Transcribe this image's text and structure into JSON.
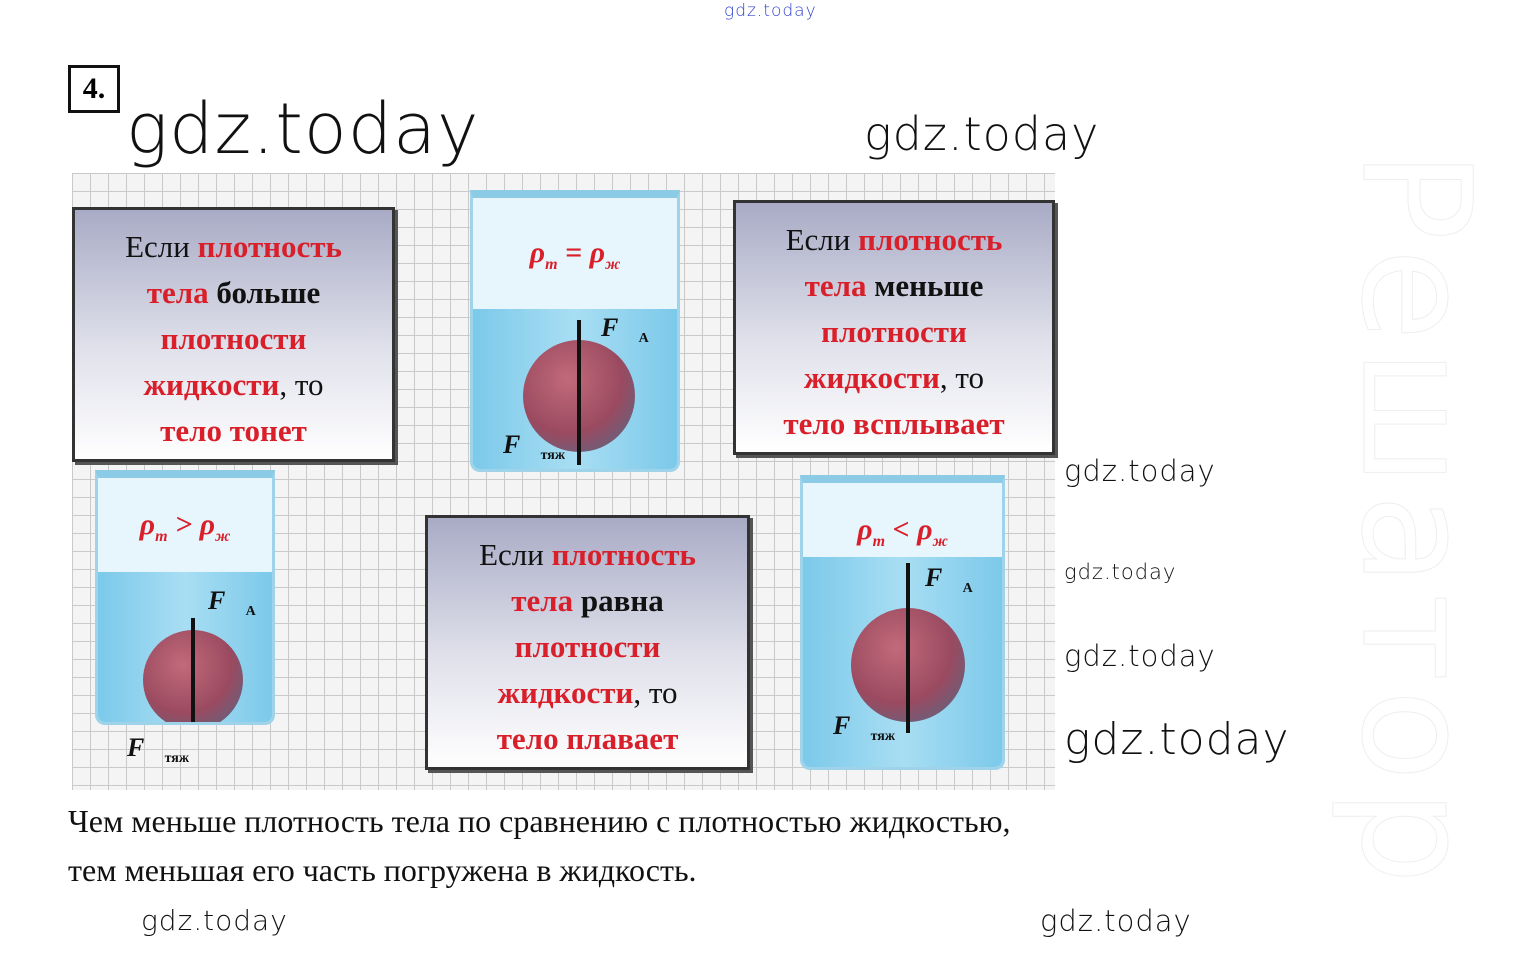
{
  "watermarks": {
    "top": "gdz.today",
    "main": "gdz.today",
    "items": [
      "gdz.today",
      "gdz.today",
      "gdz.today",
      "gdz.today",
      "gdz.today",
      "gdz.today",
      "gdz.today"
    ],
    "overlay": "Решатор"
  },
  "task_number": "4.",
  "figure": {
    "box_sinks": {
      "lines": [
        [
          "Если ",
          "плотность"
        ],
        [
          "тела",
          " больше"
        ],
        [
          "плотности"
        ],
        [
          "жидкости",
          ", то"
        ],
        [
          "тело тонет"
        ]
      ]
    },
    "box_floats": {
      "lines": [
        [
          "Если ",
          "плотность"
        ],
        [
          "тела",
          " равна"
        ],
        [
          "плотности"
        ],
        [
          "жидкости",
          ", то"
        ],
        [
          "тело плавает"
        ]
      ]
    },
    "box_rises": {
      "lines": [
        [
          "Если ",
          "плотность"
        ],
        [
          "тела",
          " меньше"
        ],
        [
          "плотности"
        ],
        [
          "жидкости",
          ", то"
        ],
        [
          "тело всплывает"
        ]
      ]
    },
    "formula_equal": {
      "lhs": "ρ",
      "lhs_sub": "т",
      "op": " = ",
      "rhs": "ρ",
      "rhs_sub": "ж"
    },
    "formula_greater": {
      "lhs": "ρ",
      "lhs_sub": "т",
      "op": " > ",
      "rhs": "ρ",
      "rhs_sub": "ж"
    },
    "formula_less": {
      "lhs": "ρ",
      "lhs_sub": "т",
      "op": " < ",
      "rhs": "ρ",
      "rhs_sub": "ж"
    },
    "force_archimedes": {
      "symbol": "F⃗",
      "sub": "А"
    },
    "force_gravity": {
      "symbol": "F⃗",
      "sub": "тяж"
    },
    "colors": {
      "highlight": "#d81f2a",
      "liquid": "#7cc9ea",
      "ball": "#9a4a60"
    }
  },
  "answer": {
    "line1": "Чем меньше плотность тела по сравнению с плотностью жидкостью,",
    "line2": "тем меньшая его часть погружена в жидкость."
  }
}
